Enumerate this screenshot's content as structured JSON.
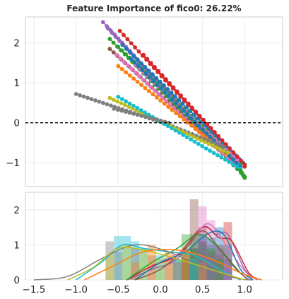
{
  "chart_data": [
    {
      "type": "line",
      "title": "Feature Importance of fico0: 26.22%",
      "xlabel": "",
      "ylabel": "",
      "xlim": [
        -1.6,
        1.45
      ],
      "ylim": [
        -1.6,
        2.65
      ],
      "yticks": [
        "−1",
        "0",
        "1",
        "2"
      ],
      "ytick_values": [
        -1,
        0,
        1,
        2
      ],
      "grid": false,
      "reference_line": {
        "y": 0,
        "style": "dashed",
        "color": "#000000"
      },
      "colors": [
        "#1f77b4",
        "#ff7f0e",
        "#2ca02c",
        "#d62728",
        "#9467bd",
        "#8c564b",
        "#e377c2",
        "#7f7f7f",
        "#bcbd22",
        "#17becf"
      ],
      "series": [
        {
          "color": "#9467bd",
          "points": [
            [
              -0.68,
              2.52
            ],
            [
              0.95,
              -1.2
            ]
          ]
        },
        {
          "color": "#d62728",
          "points": [
            [
              -0.48,
              2.3
            ],
            [
              1.0,
              -1.1
            ]
          ]
        },
        {
          "color": "#9467bd",
          "points": [
            [
              -0.62,
              2.36
            ],
            [
              0.92,
              -1.15
            ]
          ]
        },
        {
          "color": "#2ca02c",
          "points": [
            [
              -0.6,
              2.1
            ],
            [
              1.0,
              -1.35
            ]
          ]
        },
        {
          "color": "#2ca02c",
          "points": [
            [
              -0.5,
              1.9
            ],
            [
              0.95,
              -1.0
            ]
          ]
        },
        {
          "color": "#8c564b",
          "points": [
            [
              -0.6,
              1.85
            ],
            [
              0.9,
              -1.05
            ]
          ]
        },
        {
          "color": "#1f77b4",
          "points": [
            [
              -0.45,
              1.95
            ],
            [
              0.98,
              -1.0
            ]
          ]
        },
        {
          "color": "#e377c2",
          "points": [
            [
              -0.52,
              1.7
            ],
            [
              0.88,
              -1.05
            ]
          ]
        },
        {
          "color": "#e377c2",
          "points": [
            [
              -0.3,
              1.45
            ],
            [
              0.92,
              -0.95
            ]
          ]
        },
        {
          "color": "#ff7f0e",
          "points": [
            [
              -0.5,
              1.42
            ],
            [
              0.78,
              -0.78
            ]
          ]
        },
        {
          "color": "#d62728",
          "points": [
            [
              -0.2,
              1.7
            ],
            [
              1.0,
              -1.05
            ]
          ]
        },
        {
          "color": "#1f77b4",
          "points": [
            [
              -0.35,
              1.6
            ],
            [
              0.95,
              -1.1
            ]
          ]
        },
        {
          "color": "#7f7f7f",
          "points": [
            [
              -1.0,
              0.72
            ],
            [
              0.1,
              -0.05
            ],
            [
              0.75,
              -0.6
            ]
          ]
        },
        {
          "color": "#bcbd22",
          "points": [
            [
              -0.6,
              0.62
            ],
            [
              0.8,
              -0.75
            ]
          ]
        },
        {
          "color": "#17becf",
          "points": [
            [
              -0.5,
              0.65
            ],
            [
              0.95,
              -1.15
            ]
          ]
        },
        {
          "color": "#7f7f7f",
          "points": [
            [
              -0.55,
              0.35
            ],
            [
              0.1,
              0.0
            ]
          ]
        },
        {
          "color": "#2ca02c",
          "points": [
            [
              0.95,
              -1.2
            ],
            [
              1.0,
              -1.38
            ]
          ]
        }
      ]
    },
    {
      "type": "area",
      "title": "",
      "xlabel": "",
      "ylabel": "",
      "xlim": [
        -1.6,
        1.45
      ],
      "ylim": [
        0,
        2.5
      ],
      "xticks": [
        "−1.5",
        "−1.0",
        "−0.5",
        "0.0",
        "0.5",
        "1.0"
      ],
      "xtick_values": [
        -1.5,
        -1.0,
        -0.5,
        0.0,
        0.5,
        1.0
      ],
      "yticks": [
        "0",
        "1",
        "2"
      ],
      "ytick_values": [
        0,
        1,
        2
      ],
      "grid": false,
      "bin_width": 0.1,
      "histograms": [
        {
          "color": "#8c564b",
          "bins": [
            [
              0.4,
              2.3
            ],
            [
              0.5,
              1.5
            ],
            [
              0.6,
              1.0
            ],
            [
              0.3,
              0.8
            ],
            [
              0.7,
              0.7
            ]
          ]
        },
        {
          "color": "#e377c2",
          "bins": [
            [
              0.5,
              2.1
            ],
            [
              0.6,
              1.7
            ],
            [
              0.4,
              1.2
            ],
            [
              0.3,
              0.8
            ],
            [
              0.7,
              0.9
            ],
            [
              0.8,
              0.6
            ]
          ]
        },
        {
          "color": "#d62728",
          "bins": [
            [
              0.8,
              1.65
            ],
            [
              0.5,
              1.1
            ],
            [
              0.4,
              0.9
            ],
            [
              0.7,
              1.0
            ],
            [
              0.3,
              0.6
            ],
            [
              0.6,
              0.8
            ]
          ]
        },
        {
          "color": "#1f77b4",
          "bins": [
            [
              0.7,
              1.5
            ],
            [
              0.5,
              1.3
            ],
            [
              0.6,
              1.2
            ],
            [
              0.4,
              0.9
            ],
            [
              0.3,
              0.5
            ],
            [
              0.8,
              1.0
            ]
          ]
        },
        {
          "color": "#2ca02c",
          "bins": [
            [
              0.3,
              1.3
            ],
            [
              0.4,
              1.3
            ],
            [
              0.5,
              1.0
            ],
            [
              0.2,
              0.6
            ],
            [
              0.6,
              0.9
            ],
            [
              0.7,
              0.6
            ]
          ]
        },
        {
          "color": "#17becf",
          "bins": [
            [
              -0.5,
              1.25
            ],
            [
              -0.4,
              1.25
            ],
            [
              -0.3,
              1.1
            ],
            [
              -0.2,
              0.9
            ],
            [
              0.0,
              0.7
            ],
            [
              0.2,
              0.6
            ],
            [
              0.4,
              0.6
            ]
          ]
        },
        {
          "color": "#7f7f7f",
          "bins": [
            [
              -0.6,
              1.1
            ],
            [
              -0.5,
              0.8
            ],
            [
              -0.3,
              0.9
            ],
            [
              -0.1,
              0.7
            ],
            [
              0.1,
              0.6
            ],
            [
              0.3,
              0.5
            ]
          ]
        },
        {
          "color": "#bcbd22",
          "bins": [
            [
              -0.6,
              0.7
            ],
            [
              -0.4,
              1.0
            ],
            [
              -0.2,
              0.9
            ],
            [
              0.0,
              0.6
            ],
            [
              0.2,
              0.5
            ],
            [
              0.5,
              0.4
            ]
          ]
        },
        {
          "color": "#ff7f0e",
          "bins": [
            [
              -0.1,
              1.0
            ],
            [
              0.1,
              0.8
            ],
            [
              0.3,
              0.9
            ],
            [
              -0.3,
              0.5
            ],
            [
              0.5,
              0.5
            ]
          ]
        },
        {
          "color": "#9467bd",
          "bins": [
            [
              0.5,
              1.0
            ],
            [
              0.6,
              0.7
            ],
            [
              0.8,
              0.6
            ],
            [
              0.2,
              0.5
            ]
          ]
        }
      ],
      "kde": [
        {
          "color": "#9467bd",
          "points": [
            [
              -0.4,
              0.0
            ],
            [
              -0.1,
              0.3
            ],
            [
              0.2,
              0.6
            ],
            [
              0.5,
              1.5
            ],
            [
              0.65,
              1.3
            ],
            [
              0.8,
              1.3
            ],
            [
              1.0,
              0.3
            ],
            [
              1.15,
              0.0
            ]
          ]
        },
        {
          "color": "#d62728",
          "points": [
            [
              -0.4,
              0.0
            ],
            [
              -0.1,
              0.4
            ],
            [
              0.2,
              0.7
            ],
            [
              0.5,
              1.5
            ],
            [
              0.7,
              1.2
            ],
            [
              0.85,
              1.1
            ],
            [
              1.05,
              0.2
            ],
            [
              1.2,
              0.0
            ]
          ]
        },
        {
          "color": "#e377c2",
          "points": [
            [
              -0.3,
              0.0
            ],
            [
              0.0,
              0.5
            ],
            [
              0.3,
              0.9
            ],
            [
              0.55,
              1.6
            ],
            [
              0.75,
              1.1
            ],
            [
              0.95,
              0.4
            ],
            [
              1.1,
              0.0
            ]
          ]
        },
        {
          "color": "#1f77b4",
          "points": [
            [
              -0.3,
              0.0
            ],
            [
              0.0,
              0.5
            ],
            [
              0.3,
              0.8
            ],
            [
              0.55,
              1.3
            ],
            [
              0.75,
              1.3
            ],
            [
              0.95,
              0.3
            ],
            [
              1.1,
              0.0
            ]
          ]
        },
        {
          "color": "#2ca02c",
          "points": [
            [
              -0.4,
              0.0
            ],
            [
              -0.1,
              0.5
            ],
            [
              0.2,
              0.9
            ],
            [
              0.45,
              1.3
            ],
            [
              0.65,
              1.0
            ],
            [
              0.9,
              0.3
            ],
            [
              1.05,
              0.0
            ]
          ]
        },
        {
          "color": "#8c564b",
          "points": [
            [
              -0.3,
              0.0
            ],
            [
              0.0,
              0.3
            ],
            [
              0.3,
              0.9
            ],
            [
              0.5,
              1.4
            ],
            [
              0.7,
              0.9
            ],
            [
              0.95,
              0.2
            ],
            [
              1.05,
              0.0
            ]
          ]
        },
        {
          "color": "#17becf",
          "points": [
            [
              -1.0,
              0.0
            ],
            [
              -0.7,
              0.5
            ],
            [
              -0.45,
              1.0
            ],
            [
              -0.2,
              0.9
            ],
            [
              0.1,
              0.8
            ],
            [
              0.4,
              0.7
            ],
            [
              0.7,
              0.3
            ],
            [
              0.95,
              0.0
            ]
          ]
        },
        {
          "color": "#7f7f7f",
          "points": [
            [
              -1.5,
              0.0
            ],
            [
              -1.1,
              0.1
            ],
            [
              -0.7,
              0.6
            ],
            [
              -0.3,
              1.0
            ],
            [
              0.1,
              0.8
            ],
            [
              0.5,
              0.35
            ],
            [
              0.9,
              0.05
            ],
            [
              1.1,
              0.0
            ]
          ]
        },
        {
          "color": "#bcbd22",
          "points": [
            [
              -1.1,
              0.0
            ],
            [
              -0.8,
              0.35
            ],
            [
              -0.5,
              0.9
            ],
            [
              -0.2,
              0.85
            ],
            [
              0.2,
              0.6
            ],
            [
              0.6,
              0.3
            ],
            [
              1.0,
              0.0
            ]
          ]
        },
        {
          "color": "#ff7f0e",
          "points": [
            [
              -0.9,
              0.0
            ],
            [
              -0.6,
              0.35
            ],
            [
              -0.2,
              0.8
            ],
            [
              0.2,
              0.85
            ],
            [
              0.6,
              0.6
            ],
            [
              0.95,
              0.2
            ],
            [
              1.2,
              0.0
            ]
          ]
        }
      ]
    }
  ]
}
